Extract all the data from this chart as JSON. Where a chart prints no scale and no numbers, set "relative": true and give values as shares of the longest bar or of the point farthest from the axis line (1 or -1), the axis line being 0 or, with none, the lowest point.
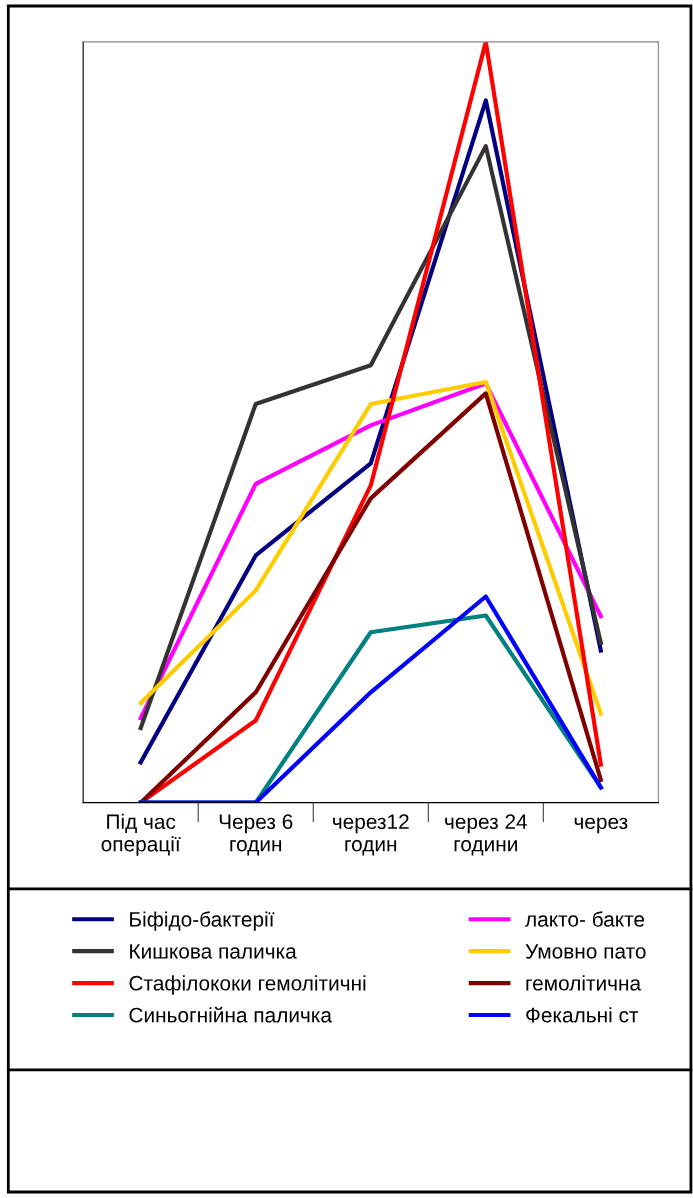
{
  "chart_data": {
    "type": "line",
    "relative": true,
    "categories": [
      "Під час\nоперації",
      "Через 6\nгодин",
      "через12\nгодин",
      "через 24\nгодини",
      "через"
    ],
    "series": [
      {
        "name": "Біфідо-бактерії",
        "color": "#000080",
        "values": [
          0.053,
          0.325,
          0.446,
          0.923,
          0.2
        ]
      },
      {
        "name": "лакто- бакте",
        "color": "#ff00ff",
        "values": [
          0.111,
          0.419,
          0.496,
          0.551,
          0.245
        ]
      },
      {
        "name": "Кишкова паличка",
        "color": "#333333",
        "values": [
          0.098,
          0.524,
          0.575,
          0.863,
          0.21
        ]
      },
      {
        "name": "Умовно пато",
        "color": "#ffcc00",
        "values": [
          0.131,
          0.279,
          0.524,
          0.553,
          0.117
        ]
      },
      {
        "name": "Стафілококи гемолітичні",
        "color": "#ff0000",
        "values": [
          0,
          0.108,
          0.417,
          1,
          0.05
        ]
      },
      {
        "name": "гемолітична",
        "color": "#800000",
        "values": [
          0,
          0.145,
          0.4,
          0.538,
          0.03
        ]
      },
      {
        "name": "Синьогнійна паличка",
        "color": "#008080",
        "values": [
          0,
          0,
          0.224,
          0.246,
          0.02
        ]
      },
      {
        "name": "Фекальні ст",
        "color": "#0000ff",
        "values": [
          0,
          0,
          0.145,
          0.271,
          0.02
        ]
      }
    ],
    "legend": "bottom",
    "marker": "none",
    "line_style": "solid"
  }
}
